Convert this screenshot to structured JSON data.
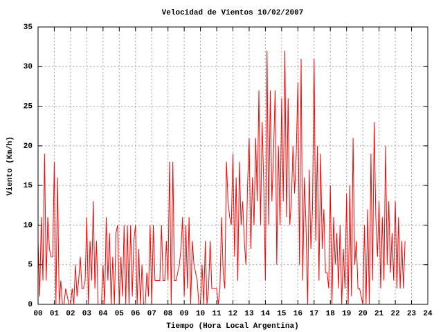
{
  "chart_data": {
    "type": "line",
    "title": "Velocidad de Vientos 10/02/2007",
    "x_label": "Tiempo (Hora Local Argentina)",
    "y_label": "Viento (Km/h)",
    "color": "#ff0000",
    "grid": true,
    "xlim": [
      0,
      24
    ],
    "ylim": [
      0,
      35
    ],
    "xticks": [
      {
        "value": 0,
        "label": "00"
      },
      {
        "value": 1,
        "label": "01"
      },
      {
        "value": 2,
        "label": "02"
      },
      {
        "value": 3,
        "label": "03"
      },
      {
        "value": 4,
        "label": "04"
      },
      {
        "value": 5,
        "label": "05"
      },
      {
        "value": 6,
        "label": "06"
      },
      {
        "value": 7,
        "label": "07"
      },
      {
        "value": 8,
        "label": "08"
      },
      {
        "value": 9,
        "label": "09"
      },
      {
        "value": 10,
        "label": "10"
      },
      {
        "value": 11,
        "label": "11"
      },
      {
        "value": 12,
        "label": "12"
      },
      {
        "value": 13,
        "label": "13"
      },
      {
        "value": 14,
        "label": "14"
      },
      {
        "value": 15,
        "label": "15"
      },
      {
        "value": 16,
        "label": "16"
      },
      {
        "value": 17,
        "label": "17"
      },
      {
        "value": 18,
        "label": "18"
      },
      {
        "value": 19,
        "label": "19"
      },
      {
        "value": 20,
        "label": "20"
      },
      {
        "value": 21,
        "label": "21"
      },
      {
        "value": 22,
        "label": "22"
      },
      {
        "value": 23,
        "label": "23"
      },
      {
        "value": 24,
        "label": "24"
      }
    ],
    "yticks": [
      0,
      5,
      10,
      15,
      20,
      25,
      30,
      35
    ],
    "x": [
      0,
      0.1,
      0.2,
      0.3,
      0.4,
      0.5,
      0.6,
      0.7,
      0.8,
      0.9,
      1,
      1.1,
      1.2,
      1.3,
      1.4,
      1.5,
      1.6,
      1.7,
      1.8,
      1.9,
      2,
      2.1,
      2.2,
      2.3,
      2.4,
      2.5,
      2.6,
      2.7,
      2.8,
      2.9,
      3,
      3.1,
      3.2,
      3.3,
      3.4,
      3.5,
      3.6,
      3.7,
      3.8,
      3.9,
      4,
      4.1,
      4.2,
      4.3,
      4.4,
      4.5,
      4.6,
      4.7,
      4.8,
      4.9,
      5,
      5.1,
      5.2,
      5.3,
      5.4,
      5.5,
      5.6,
      5.7,
      5.8,
      5.9,
      6,
      6.1,
      6.2,
      6.3,
      6.4,
      6.5,
      6.6,
      6.7,
      6.8,
      6.9,
      7,
      7.1,
      7.2,
      7.3,
      7.4,
      7.5,
      7.6,
      7.7,
      7.8,
      7.9,
      8,
      8.1,
      8.2,
      8.3,
      8.4,
      8.5,
      8.6,
      8.7,
      8.8,
      8.9,
      9,
      9.1,
      9.2,
      9.3,
      9.4,
      9.5,
      9.6,
      9.7,
      9.8,
      9.9,
      10,
      10.1,
      10.2,
      10.3,
      10.4,
      10.5,
      10.6,
      10.7,
      10.8,
      10.9,
      11,
      11.1,
      11.2,
      11.3,
      11.4,
      11.5,
      11.6,
      11.7,
      11.8,
      11.9,
      12,
      12.1,
      12.2,
      12.3,
      12.4,
      12.5,
      12.6,
      12.7,
      12.8,
      12.9,
      13,
      13.1,
      13.2,
      13.3,
      13.4,
      13.5,
      13.6,
      13.7,
      13.8,
      13.9,
      14,
      14.1,
      14.2,
      14.3,
      14.4,
      14.5,
      14.6,
      14.7,
      14.8,
      14.9,
      15,
      15.1,
      15.2,
      15.3,
      15.4,
      15.5,
      15.6,
      15.7,
      15.8,
      15.9,
      16,
      16.1,
      16.2,
      16.3,
      16.4,
      16.5,
      16.6,
      16.7,
      16.8,
      16.9,
      17,
      17.1,
      17.2,
      17.3,
      17.4,
      17.5,
      17.6,
      17.7,
      17.8,
      17.9,
      18,
      18.1,
      18.2,
      18.3,
      18.4,
      18.5,
      18.6,
      18.7,
      18.8,
      18.9,
      19,
      19.1,
      19.2,
      19.3,
      19.4,
      19.5,
      19.6,
      19.7,
      19.8,
      19.9,
      20,
      20.1,
      20.2,
      20.3,
      20.4,
      20.5,
      20.6,
      20.7,
      20.8,
      20.9,
      21,
      21.1,
      21.2,
      21.3,
      21.4,
      21.5,
      21.6,
      21.7,
      21.8,
      21.9,
      22,
      22.1,
      22.2,
      22.3,
      22.4,
      22.5,
      22.6
    ],
    "values": [
      8,
      1,
      11,
      3,
      19,
      3,
      11,
      7,
      6,
      6,
      18,
      0,
      16,
      0,
      3,
      0,
      0,
      2,
      1,
      0,
      0,
      2,
      0,
      5,
      1,
      3,
      6,
      2,
      2,
      3,
      11,
      0,
      8,
      3,
      13,
      2,
      8,
      0,
      0,
      0,
      5,
      0,
      11,
      3,
      9,
      0,
      6,
      0,
      9,
      10,
      0,
      6,
      1,
      10,
      0,
      10,
      0,
      10,
      1,
      8,
      10,
      0,
      7,
      0,
      5,
      0,
      0,
      4,
      1,
      10,
      0,
      10,
      3,
      3,
      3,
      3,
      10,
      3,
      3,
      8,
      3,
      18,
      0,
      18,
      3,
      3,
      4,
      5,
      7,
      11,
      1,
      10,
      2,
      11,
      0,
      8,
      5,
      4,
      3,
      0,
      0,
      5,
      0,
      8,
      0,
      2,
      8,
      2,
      2,
      2,
      2,
      0,
      2,
      11,
      4,
      2,
      18,
      13,
      11,
      10,
      19,
      6,
      16,
      3,
      18,
      10,
      13,
      8,
      5,
      15,
      21,
      7,
      16,
      10,
      21,
      13,
      27,
      10,
      23,
      15,
      3,
      32,
      10,
      27,
      13,
      19,
      27,
      5,
      20,
      10,
      26,
      13,
      32,
      11,
      26,
      10,
      13,
      20,
      14,
      19,
      28,
      5,
      31,
      3,
      16,
      10,
      0,
      17,
      7,
      12,
      31,
      8,
      20,
      3,
      19,
      7,
      12,
      4,
      4,
      2,
      15,
      0,
      11,
      5,
      9,
      2,
      10,
      0,
      7,
      2,
      14,
      0,
      15,
      1,
      21,
      5,
      8,
      2,
      2,
      1,
      0,
      10,
      0,
      12,
      0,
      19,
      3,
      23,
      11,
      6,
      13,
      2,
      11,
      3,
      20,
      5,
      13,
      4,
      9,
      3,
      13,
      2,
      11,
      2,
      8,
      2,
      8
    ]
  }
}
